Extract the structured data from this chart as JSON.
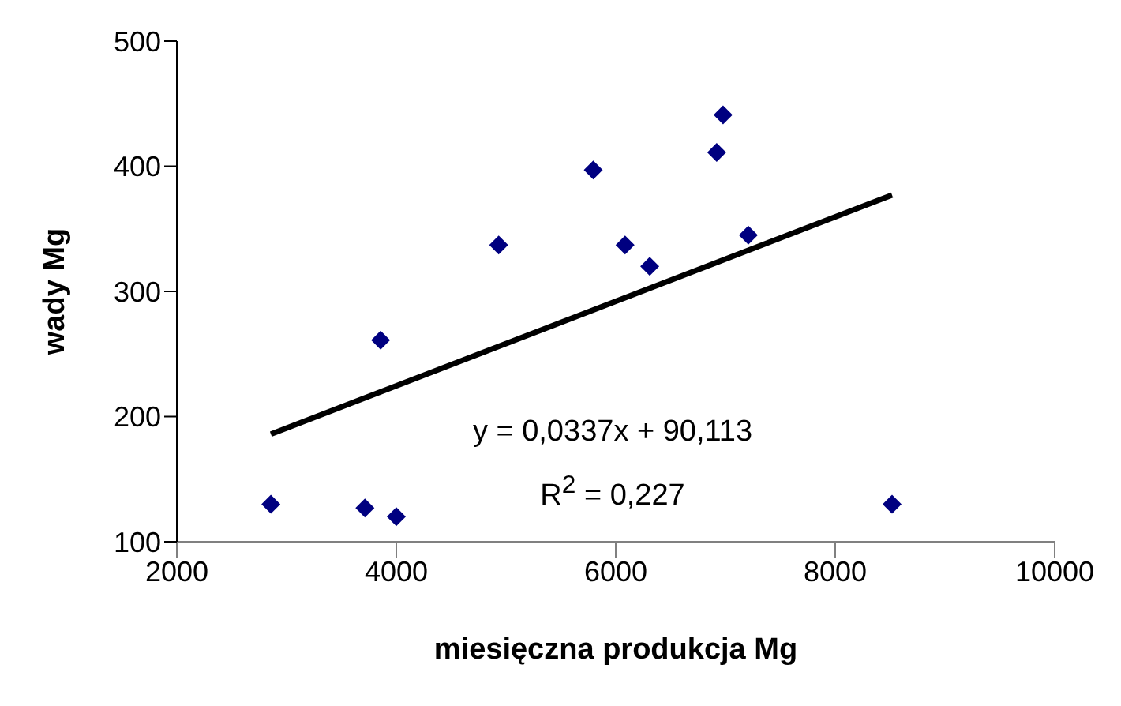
{
  "chart_data": {
    "type": "scatter",
    "xlabel": "miesięczna produkcja Mg",
    "ylabel": "wady Mg",
    "series": [
      {
        "color": "#000080",
        "marker": "diamond",
        "x": [
          2857,
          3714,
          4000,
          3857,
          4933,
          5795,
          6085,
          6310,
          6920,
          6978,
          7208,
          8518
        ],
        "values": [
          130,
          127,
          120,
          261,
          337,
          397,
          337,
          320,
          411,
          441,
          345,
          130
        ]
      },
      {
        "type": "line",
        "color": "#000000",
        "marker": "none",
        "x": [
          2857,
          8518
        ],
        "values": [
          186,
          377
        ]
      }
    ],
    "xlim": [
      2000,
      10000
    ],
    "xticks": [
      2000,
      4000,
      6000,
      8000,
      10000
    ],
    "ylim": [
      100,
      500
    ],
    "yticks": [
      100,
      200,
      300,
      400,
      500
    ],
    "grid": false,
    "legend": false,
    "annotations": [
      "y = 0,0337x + 90,113",
      "R$^{2}$ = 0,227"
    ]
  }
}
